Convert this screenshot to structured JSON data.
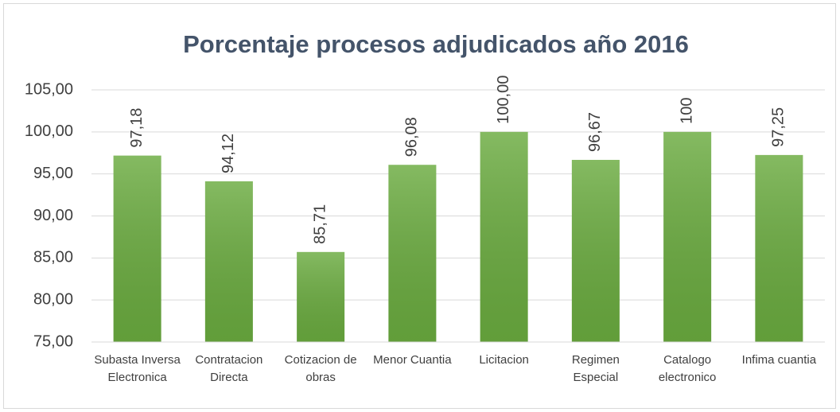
{
  "chart_data": {
    "type": "bar",
    "title": "Porcentaje procesos adjudicados año 2016",
    "categories": [
      "Subasta Inversa Electronica",
      "Contratacion Directa",
      "Cotizacion de obras",
      "Menor Cuantia",
      "Licitacion",
      "Regimen Especial",
      "Catalogo electronico",
      "Infima cuantia"
    ],
    "values": [
      97.18,
      94.12,
      85.71,
      96.08,
      100,
      96.67,
      100,
      97.25
    ],
    "value_labels": [
      "97,18",
      "94,12",
      "85,71",
      "96,08",
      "100,00",
      "96,67",
      "100",
      "97,25"
    ],
    "color": "#6aab3f",
    "ylim": [
      75,
      105
    ],
    "yticks": [
      {
        "value": 75,
        "label": "75,00"
      },
      {
        "value": 80,
        "label": "80,00"
      },
      {
        "value": 85,
        "label": "85,00"
      },
      {
        "value": 90,
        "label": "90,00"
      },
      {
        "value": 95,
        "label": "95,00"
      },
      {
        "value": 100,
        "label": "100,00"
      },
      {
        "value": 105,
        "label": "105,00"
      }
    ],
    "grid": true
  }
}
